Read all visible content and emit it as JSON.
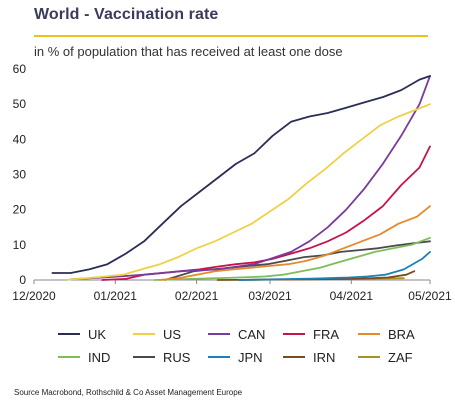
{
  "header": {
    "title": "World - Vaccination rate",
    "subtitle": "in % of population that has received at least one dose"
  },
  "footer": {
    "source": "Source Macrobond, Rothschild & Co Asset Management Europe"
  },
  "colors": {
    "accent_rule": "#e8c31a",
    "title": "#3b3b5c"
  },
  "chart_data": {
    "type": "line",
    "title": "World - Vaccination rate",
    "subtitle": "in % of population that has received at least one dose",
    "xlabel": "",
    "ylabel": "",
    "x_type": "date",
    "xlim": [
      "2020-12-01",
      "2021-05-01"
    ],
    "ylim": [
      0,
      60
    ],
    "yticks": [
      0,
      10,
      20,
      30,
      40,
      50,
      60
    ],
    "xticks": [
      {
        "date": "2020-12-01",
        "label": "12/2020"
      },
      {
        "date": "2021-01-01",
        "label": "01/2021"
      },
      {
        "date": "2021-02-01",
        "label": "02/2021"
      },
      {
        "date": "2021-03-01",
        "label": "03/2021"
      },
      {
        "date": "2021-04-01",
        "label": "04/2021"
      },
      {
        "date": "2021-05-01",
        "label": "05/2021"
      }
    ],
    "grid": false,
    "legend": "bottom",
    "series": [
      {
        "name": "UK",
        "color": "#2b2d55",
        "points": [
          [
            "2020-12-08",
            2
          ],
          [
            "2020-12-15",
            2
          ],
          [
            "2020-12-22",
            3
          ],
          [
            "2020-12-29",
            4.5
          ],
          [
            "2021-01-05",
            7.5
          ],
          [
            "2021-01-12",
            11
          ],
          [
            "2021-01-19",
            16
          ],
          [
            "2021-01-26",
            21
          ],
          [
            "2021-02-02",
            25
          ],
          [
            "2021-02-09",
            29
          ],
          [
            "2021-02-16",
            33
          ],
          [
            "2021-02-23",
            36
          ],
          [
            "2021-03-02",
            41
          ],
          [
            "2021-03-09",
            45
          ],
          [
            "2021-03-16",
            46.5
          ],
          [
            "2021-03-23",
            47.5
          ],
          [
            "2021-03-30",
            49
          ],
          [
            "2021-04-06",
            50.5
          ],
          [
            "2021-04-13",
            52
          ],
          [
            "2021-04-20",
            54
          ],
          [
            "2021-04-27",
            57
          ],
          [
            "2021-05-01",
            58
          ]
        ]
      },
      {
        "name": "US",
        "color": "#efd147",
        "points": [
          [
            "2020-12-14",
            0.1
          ],
          [
            "2020-12-21",
            0.5
          ],
          [
            "2020-12-28",
            1
          ],
          [
            "2021-01-04",
            1.5
          ],
          [
            "2021-01-11",
            3
          ],
          [
            "2021-01-18",
            4.5
          ],
          [
            "2021-01-25",
            6.5
          ],
          [
            "2021-02-01",
            9
          ],
          [
            "2021-02-08",
            11
          ],
          [
            "2021-02-15",
            13.5
          ],
          [
            "2021-02-22",
            16
          ],
          [
            "2021-03-01",
            19.5
          ],
          [
            "2021-03-08",
            23
          ],
          [
            "2021-03-15",
            27.5
          ],
          [
            "2021-03-22",
            31.5
          ],
          [
            "2021-03-29",
            36
          ],
          [
            "2021-04-05",
            40
          ],
          [
            "2021-04-12",
            44
          ],
          [
            "2021-04-19",
            46.5
          ],
          [
            "2021-04-26",
            48.5
          ],
          [
            "2021-05-01",
            50
          ]
        ]
      },
      {
        "name": "CAN",
        "color": "#7a3b9e",
        "points": [
          [
            "2020-12-15",
            0.2
          ],
          [
            "2020-12-29",
            0.8
          ],
          [
            "2021-01-12",
            1.5
          ],
          [
            "2021-01-26",
            2.5
          ],
          [
            "2021-02-09",
            3
          ],
          [
            "2021-02-23",
            4.5
          ],
          [
            "2021-03-09",
            8
          ],
          [
            "2021-03-16",
            11
          ],
          [
            "2021-03-23",
            15
          ],
          [
            "2021-03-30",
            20
          ],
          [
            "2021-04-06",
            26
          ],
          [
            "2021-04-13",
            33
          ],
          [
            "2021-04-20",
            41
          ],
          [
            "2021-04-27",
            50
          ],
          [
            "2021-05-01",
            58
          ]
        ]
      },
      {
        "name": "FRA",
        "color": "#c8124a",
        "points": [
          [
            "2020-12-27",
            0
          ],
          [
            "2021-01-05",
            0.3
          ],
          [
            "2021-01-12",
            1.5
          ],
          [
            "2021-01-19",
            2
          ],
          [
            "2021-01-26",
            2.5
          ],
          [
            "2021-02-02",
            3
          ],
          [
            "2021-02-09",
            3.8
          ],
          [
            "2021-02-16",
            4.5
          ],
          [
            "2021-02-23",
            5
          ],
          [
            "2021-03-02",
            6
          ],
          [
            "2021-03-09",
            7.5
          ],
          [
            "2021-03-16",
            9
          ],
          [
            "2021-03-23",
            11
          ],
          [
            "2021-03-30",
            13.5
          ],
          [
            "2021-04-06",
            17
          ],
          [
            "2021-04-13",
            21
          ],
          [
            "2021-04-20",
            27
          ],
          [
            "2021-04-27",
            32
          ],
          [
            "2021-05-01",
            38
          ]
        ]
      },
      {
        "name": "BRA",
        "color": "#e58a2c",
        "points": [
          [
            "2021-01-18",
            0
          ],
          [
            "2021-01-25",
            0.5
          ],
          [
            "2021-02-01",
            1.5
          ],
          [
            "2021-02-08",
            2.5
          ],
          [
            "2021-02-15",
            3
          ],
          [
            "2021-02-22",
            3.5
          ],
          [
            "2021-03-01",
            4
          ],
          [
            "2021-03-08",
            4.5
          ],
          [
            "2021-03-15",
            5.5
          ],
          [
            "2021-03-22",
            7
          ],
          [
            "2021-03-29",
            9
          ],
          [
            "2021-04-05",
            11
          ],
          [
            "2021-04-12",
            13
          ],
          [
            "2021-04-19",
            16
          ],
          [
            "2021-04-26",
            18
          ],
          [
            "2021-05-01",
            21
          ]
        ]
      },
      {
        "name": "IND",
        "color": "#7fbd5b",
        "points": [
          [
            "2021-01-16",
            0
          ],
          [
            "2021-01-30",
            0.3
          ],
          [
            "2021-02-13",
            0.6
          ],
          [
            "2021-02-27",
            1
          ],
          [
            "2021-03-06",
            1.5
          ],
          [
            "2021-03-13",
            2.5
          ],
          [
            "2021-03-20",
            3.5
          ],
          [
            "2021-03-27",
            5
          ],
          [
            "2021-04-03",
            6.5
          ],
          [
            "2021-04-10",
            8
          ],
          [
            "2021-04-17",
            9
          ],
          [
            "2021-04-24",
            10
          ],
          [
            "2021-05-01",
            12
          ]
        ]
      },
      {
        "name": "RUS",
        "color": "#4a4a4a",
        "points": [
          [
            "2021-01-20",
            0
          ],
          [
            "2021-01-31",
            2.5
          ],
          [
            "2021-02-07",
            3
          ],
          [
            "2021-02-14",
            3.5
          ],
          [
            "2021-02-21",
            4
          ],
          [
            "2021-02-28",
            4.5
          ],
          [
            "2021-03-07",
            5.5
          ],
          [
            "2021-03-14",
            6.5
          ],
          [
            "2021-03-21",
            7
          ],
          [
            "2021-03-28",
            8
          ],
          [
            "2021-04-04",
            8.5
          ],
          [
            "2021-04-11",
            9
          ],
          [
            "2021-04-18",
            9.8
          ],
          [
            "2021-04-25",
            10.5
          ],
          [
            "2021-05-01",
            11
          ]
        ]
      },
      {
        "name": "JPN",
        "color": "#1f7fb8",
        "points": [
          [
            "2021-02-17",
            0
          ],
          [
            "2021-03-03",
            0.2
          ],
          [
            "2021-03-17",
            0.4
          ],
          [
            "2021-03-31",
            0.7
          ],
          [
            "2021-04-07",
            1
          ],
          [
            "2021-04-14",
            1.5
          ],
          [
            "2021-04-21",
            3
          ],
          [
            "2021-04-28",
            6
          ],
          [
            "2021-05-01",
            8
          ]
        ]
      },
      {
        "name": "IRN",
        "color": "#7a4a1e",
        "points": [
          [
            "2021-02-09",
            0
          ],
          [
            "2021-03-01",
            0.1
          ],
          [
            "2021-03-15",
            0.2
          ],
          [
            "2021-04-01",
            0.3
          ],
          [
            "2021-04-15",
            0.7
          ],
          [
            "2021-04-22",
            1.5
          ],
          [
            "2021-04-25",
            2.5
          ]
        ]
      },
      {
        "name": "ZAF",
        "color": "#a89026",
        "points": [
          [
            "2021-02-17",
            0
          ],
          [
            "2021-03-01",
            0.1
          ],
          [
            "2021-04-01",
            0.3
          ],
          [
            "2021-04-21",
            0.5
          ]
        ]
      }
    ]
  }
}
